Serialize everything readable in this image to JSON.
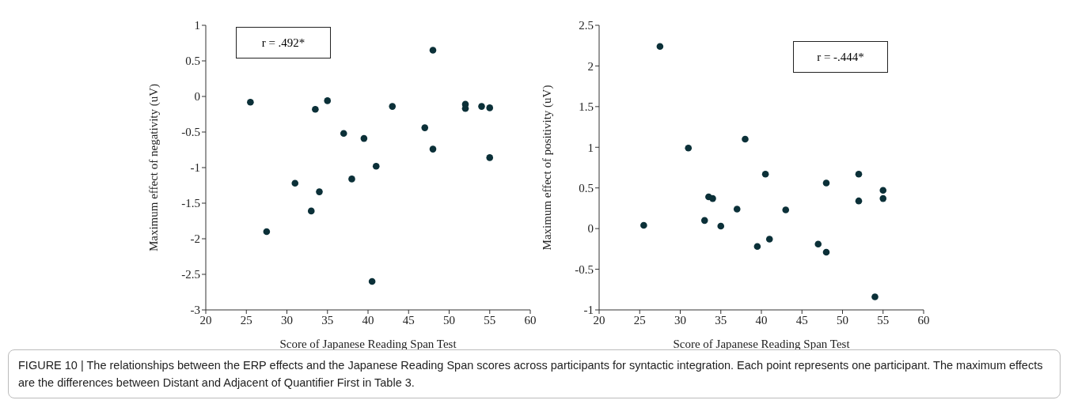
{
  "chart_data": [
    {
      "type": "scatter",
      "xlabel": "Score of Japanese Reading Span Test",
      "ylabel": "Maximum effect of negativity (uV)",
      "color": "#0b3038",
      "marker": "circle",
      "x": [
        25.5,
        27.5,
        31,
        33,
        33.5,
        34,
        35,
        37,
        38,
        39.5,
        40.5,
        41,
        43,
        47,
        48,
        48,
        52,
        52,
        54,
        55,
        55
      ],
      "values": [
        -0.08,
        -1.9,
        -1.22,
        -1.61,
        -0.18,
        -1.34,
        -0.06,
        -0.52,
        -1.16,
        -0.59,
        -2.6,
        -0.98,
        -0.14,
        -0.44,
        0.65,
        -0.74,
        -0.11,
        -0.17,
        -0.14,
        -0.16,
        -0.86
      ],
      "xlim": [
        20,
        60
      ],
      "xticks": [
        20,
        25,
        30,
        35,
        40,
        45,
        50,
        55,
        60
      ],
      "ylim": [
        -3,
        1
      ],
      "yticks": [
        -3,
        -2.5,
        -2,
        -1.5,
        -1,
        -0.5,
        0,
        0.5,
        1
      ],
      "annotations": [
        "r = .492*"
      ]
    },
    {
      "type": "scatter",
      "xlabel": "Score of  Japanese Reading Span Test",
      "ylabel": "Maximum effect of positivity (uV)",
      "color": "#0b3038",
      "marker": "circle",
      "x": [
        25.5,
        27.5,
        31,
        33,
        33.5,
        34,
        35,
        37,
        38,
        39.5,
        40.5,
        41,
        43,
        47,
        48,
        48,
        52,
        52,
        54,
        55,
        55
      ],
      "values": [
        0.04,
        2.24,
        0.99,
        0.1,
        0.39,
        0.37,
        0.03,
        0.24,
        1.1,
        -0.22,
        0.67,
        -0.13,
        0.23,
        -0.19,
        0.56,
        -0.29,
        0.67,
        0.34,
        -0.84,
        0.47,
        0.37
      ],
      "xlim": [
        20,
        60
      ],
      "xticks": [
        20,
        25,
        30,
        35,
        40,
        45,
        50,
        55,
        60
      ],
      "ylim": [
        -1,
        2.5
      ],
      "yticks": [
        -1,
        -0.5,
        0,
        0.5,
        1,
        1.5,
        2,
        2.5
      ],
      "annotations": [
        "r = -.444*",
        "FIGURE 10 | The relationships between the ERP effects and the Japanese Reading Span scores across participants for syntactic integration. Each point represents one participant. The maximum effects are the differences between Distant and Adjacent of Quantifier First in Table 3."
      ]
    }
  ]
}
